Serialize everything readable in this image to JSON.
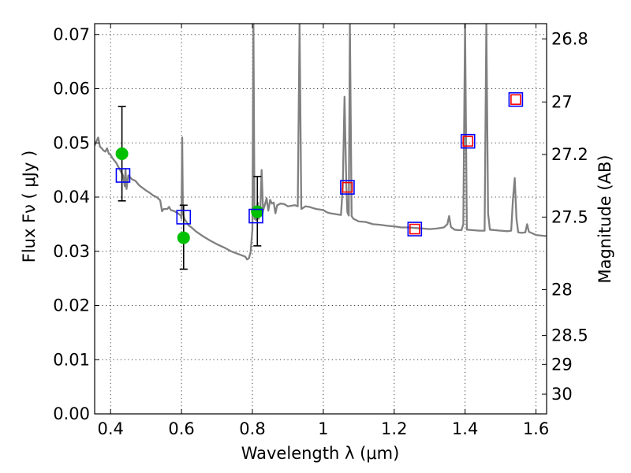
{
  "chart_data": {
    "type": "scatter",
    "xlabel": "Wavelength  λ (μm)",
    "ylabel": "Flux  Fν  ( μJy )",
    "ylabel_right": "Magnitude (AB)",
    "xlim": [
      0.355,
      1.63
    ],
    "ylim": [
      0.0,
      0.072
    ],
    "grid": true,
    "x_ticks": [
      0.4,
      0.6,
      0.8,
      1.0,
      1.2,
      1.4,
      1.6
    ],
    "x_tick_labels": [
      "0.4",
      "0.6",
      "0.8",
      "1",
      "1.2",
      "1.4",
      "1.6"
    ],
    "y_ticks": [
      0.0,
      0.01,
      0.02,
      0.03,
      0.04,
      0.05,
      0.06,
      0.07
    ],
    "y_tick_labels": [
      "0.00",
      "0.01",
      "0.02",
      "0.03",
      "0.04",
      "0.05",
      "0.06",
      "0.07"
    ],
    "right_ticks": [
      {
        "mag": 26.8,
        "label": "26.8"
      },
      {
        "mag": 27.0,
        "label": "27"
      },
      {
        "mag": 27.2,
        "label": "27.2"
      },
      {
        "mag": 27.5,
        "label": "27.5"
      },
      {
        "mag": 28.0,
        "label": "28"
      },
      {
        "mag": 28.5,
        "label": "28.5"
      },
      {
        "mag": 29.0,
        "label": "29"
      },
      {
        "mag": 30.0,
        "label": "30"
      }
    ],
    "series": [
      {
        "kind": "line",
        "color": "#808080",
        "points": [
          [
            0.355,
            0.0495
          ],
          [
            0.36,
            0.0503
          ],
          [
            0.365,
            0.051
          ],
          [
            0.37,
            0.0493
          ],
          [
            0.375,
            0.049
          ],
          [
            0.38,
            0.0486
          ],
          [
            0.385,
            0.0484
          ],
          [
            0.39,
            0.049
          ],
          [
            0.395,
            0.048
          ],
          [
            0.4,
            0.0478
          ],
          [
            0.405,
            0.0472
          ],
          [
            0.41,
            0.0468
          ],
          [
            0.415,
            0.0464
          ],
          [
            0.42,
            0.0458
          ],
          [
            0.425,
            0.0452
          ],
          [
            0.43,
            0.0446
          ],
          [
            0.435,
            0.044
          ],
          [
            0.44,
            0.042
          ],
          [
            0.442,
            0.0452
          ],
          [
            0.445,
            0.0415
          ],
          [
            0.45,
            0.044
          ],
          [
            0.46,
            0.0433
          ],
          [
            0.47,
            0.043
          ],
          [
            0.48,
            0.0422
          ],
          [
            0.49,
            0.0417
          ],
          [
            0.5,
            0.0412
          ],
          [
            0.51,
            0.0408
          ],
          [
            0.52,
            0.0403
          ],
          [
            0.53,
            0.04
          ],
          [
            0.54,
            0.0394
          ],
          [
            0.545,
            0.0374
          ],
          [
            0.55,
            0.0378
          ],
          [
            0.56,
            0.0378
          ],
          [
            0.565,
            0.0382
          ],
          [
            0.57,
            0.0376
          ],
          [
            0.58,
            0.0374
          ],
          [
            0.59,
            0.037
          ],
          [
            0.598,
            0.0366
          ],
          [
            0.6,
            0.036
          ],
          [
            0.602,
            0.051
          ],
          [
            0.604,
            0.0372
          ],
          [
            0.607,
            0.0362
          ],
          [
            0.61,
            0.0358
          ],
          [
            0.62,
            0.0348
          ],
          [
            0.63,
            0.0343
          ],
          [
            0.64,
            0.0337
          ],
          [
            0.66,
            0.0328
          ],
          [
            0.68,
            0.032
          ],
          [
            0.7,
            0.0313
          ],
          [
            0.72,
            0.0307
          ],
          [
            0.74,
            0.03
          ],
          [
            0.76,
            0.0295
          ],
          [
            0.78,
            0.029
          ],
          [
            0.785,
            0.0285
          ],
          [
            0.79,
            0.0287
          ],
          [
            0.795,
            0.0298
          ],
          [
            0.8,
            0.034
          ],
          [
            0.803,
            0.072
          ],
          [
            0.806,
            0.036
          ],
          [
            0.81,
            0.0358
          ],
          [
            0.815,
            0.039
          ],
          [
            0.818,
            0.036
          ],
          [
            0.822,
            0.037
          ],
          [
            0.826,
            0.045
          ],
          [
            0.83,
            0.0375
          ],
          [
            0.835,
            0.0385
          ],
          [
            0.84,
            0.0398
          ],
          [
            0.845,
            0.0375
          ],
          [
            0.85,
            0.0395
          ],
          [
            0.855,
            0.0388
          ],
          [
            0.86,
            0.039
          ],
          [
            0.865,
            0.037
          ],
          [
            0.87,
            0.0385
          ],
          [
            0.88,
            0.0388
          ],
          [
            0.89,
            0.0387
          ],
          [
            0.9,
            0.0383
          ],
          [
            0.91,
            0.0384
          ],
          [
            0.92,
            0.0385
          ],
          [
            0.928,
            0.0383
          ],
          [
            0.933,
            0.072
          ],
          [
            0.938,
            0.0378
          ],
          [
            0.95,
            0.0383
          ],
          [
            0.96,
            0.0382
          ],
          [
            0.97,
            0.038
          ],
          [
            0.98,
            0.0378
          ],
          [
            0.99,
            0.0377
          ],
          [
            1.0,
            0.0376
          ],
          [
            1.01,
            0.0372
          ],
          [
            1.02,
            0.037
          ],
          [
            1.03,
            0.0369
          ],
          [
            1.04,
            0.0368
          ],
          [
            1.05,
            0.0367
          ],
          [
            1.055,
            0.042
          ],
          [
            1.06,
            0.0585
          ],
          [
            1.065,
            0.042
          ],
          [
            1.068,
            0.0372
          ],
          [
            1.072,
            0.0366
          ],
          [
            1.075,
            0.072
          ],
          [
            1.08,
            0.0365
          ],
          [
            1.085,
            0.036
          ],
          [
            1.1,
            0.0355
          ],
          [
            1.12,
            0.0354
          ],
          [
            1.14,
            0.035
          ],
          [
            1.16,
            0.0349
          ],
          [
            1.18,
            0.0347
          ],
          [
            1.2,
            0.0346
          ],
          [
            1.22,
            0.0344
          ],
          [
            1.24,
            0.0344
          ],
          [
            1.26,
            0.0343
          ],
          [
            1.28,
            0.0342
          ],
          [
            1.3,
            0.0341
          ],
          [
            1.32,
            0.0342
          ],
          [
            1.34,
            0.0344
          ],
          [
            1.35,
            0.035
          ],
          [
            1.355,
            0.0365
          ],
          [
            1.36,
            0.0345
          ],
          [
            1.37,
            0.034
          ],
          [
            1.38,
            0.0339
          ],
          [
            1.39,
            0.0339
          ],
          [
            1.395,
            0.035
          ],
          [
            1.4,
            0.072
          ],
          [
            1.405,
            0.034
          ],
          [
            1.42,
            0.0339
          ],
          [
            1.44,
            0.0338
          ],
          [
            1.455,
            0.0338
          ],
          [
            1.46,
            0.072
          ],
          [
            1.465,
            0.037
          ],
          [
            1.47,
            0.034
          ],
          [
            1.5,
            0.0338
          ],
          [
            1.52,
            0.0337
          ],
          [
            1.53,
            0.0338
          ],
          [
            1.535,
            0.0395
          ],
          [
            1.54,
            0.0435
          ],
          [
            1.545,
            0.036
          ],
          [
            1.55,
            0.0335
          ],
          [
            1.56,
            0.0334
          ],
          [
            1.57,
            0.0335
          ],
          [
            1.575,
            0.035
          ],
          [
            1.58,
            0.0336
          ],
          [
            1.6,
            0.033
          ],
          [
            1.63,
            0.0328
          ]
        ]
      },
      {
        "kind": "scatter-circle",
        "color": "#00c000",
        "points": [
          {
            "x": 0.432,
            "y": 0.048
          },
          {
            "x": 0.606,
            "y": 0.0325
          },
          {
            "x": 0.814,
            "y": 0.0373
          }
        ]
      },
      {
        "kind": "errorbar",
        "color": "#000000",
        "points": [
          {
            "x": 0.432,
            "y": 0.048,
            "low": 0.0393,
            "high": 0.0567
          },
          {
            "x": 0.606,
            "y": 0.0325,
            "low": 0.0267,
            "high": 0.0385
          },
          {
            "x": 0.814,
            "y": 0.0373,
            "low": 0.031,
            "high": 0.0438
          }
        ]
      },
      {
        "kind": "scatter-square-red",
        "color": "#ff0000",
        "points": [
          {
            "x": 1.068,
            "y": 0.0418
          },
          {
            "x": 1.258,
            "y": 0.0341
          },
          {
            "x": 1.408,
            "y": 0.0503
          },
          {
            "x": 1.543,
            "y": 0.058
          }
        ]
      },
      {
        "kind": "scatter-square-blue",
        "color": "#0000ff",
        "points": [
          {
            "x": 0.435,
            "y": 0.044
          },
          {
            "x": 0.606,
            "y": 0.0363
          },
          {
            "x": 0.81,
            "y": 0.0365
          },
          {
            "x": 1.068,
            "y": 0.0418
          },
          {
            "x": 1.258,
            "y": 0.0341
          },
          {
            "x": 1.408,
            "y": 0.0503
          },
          {
            "x": 1.543,
            "y": 0.058
          }
        ]
      }
    ]
  }
}
